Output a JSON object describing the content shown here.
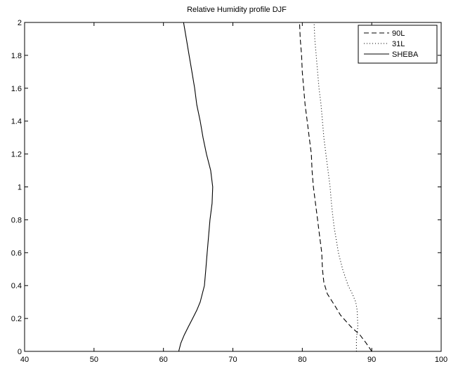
{
  "chart_data": {
    "type": "line",
    "title": "Relative Humidity profile DJF",
    "xlabel": "",
    "ylabel": "",
    "xlim": [
      40,
      100
    ],
    "ylim": [
      0,
      2
    ],
    "xticks": [
      40,
      50,
      60,
      70,
      80,
      90,
      100
    ],
    "yticks": [
      0,
      0.2,
      0.4,
      0.6,
      0.8,
      1,
      1.2,
      1.4,
      1.6,
      1.8,
      2
    ],
    "xtick_labels": [
      "40",
      "50",
      "60",
      "70",
      "80",
      "90",
      "100"
    ],
    "ytick_labels": [
      "0",
      "0.2",
      "0.4",
      "0.6",
      "0.8",
      "1",
      "1.2",
      "1.4",
      "1.6",
      "1.8",
      "2"
    ],
    "grid": false,
    "legend_position": "top-right",
    "series": [
      {
        "name": "90L",
        "style": "dashed",
        "color": "#000000",
        "points": [
          [
            90.0,
            0.0
          ],
          [
            89.2,
            0.05
          ],
          [
            88.3,
            0.1
          ],
          [
            87.0,
            0.15
          ],
          [
            85.5,
            0.22
          ],
          [
            84.8,
            0.27
          ],
          [
            83.6,
            0.35
          ],
          [
            83.1,
            0.42
          ],
          [
            82.9,
            0.5
          ],
          [
            82.8,
            0.6
          ],
          [
            82.5,
            0.7
          ],
          [
            82.2,
            0.8
          ],
          [
            81.9,
            0.9
          ],
          [
            81.6,
            1.0
          ],
          [
            81.4,
            1.1
          ],
          [
            81.3,
            1.2
          ],
          [
            81.0,
            1.3
          ],
          [
            80.7,
            1.4
          ],
          [
            80.4,
            1.5
          ],
          [
            80.2,
            1.6
          ],
          [
            80.0,
            1.7
          ],
          [
            79.9,
            1.8
          ],
          [
            79.7,
            1.9
          ],
          [
            79.6,
            2.0
          ]
        ]
      },
      {
        "name": "31L",
        "style": "dotted",
        "color": "#000000",
        "points": [
          [
            87.8,
            0.0
          ],
          [
            87.8,
            0.08
          ],
          [
            88.0,
            0.15
          ],
          [
            87.9,
            0.25
          ],
          [
            87.7,
            0.3
          ],
          [
            87.2,
            0.35
          ],
          [
            86.6,
            0.4
          ],
          [
            86.2,
            0.45
          ],
          [
            85.8,
            0.5
          ],
          [
            85.5,
            0.55
          ],
          [
            85.2,
            0.6
          ],
          [
            85.0,
            0.65
          ],
          [
            84.6,
            0.75
          ],
          [
            84.4,
            0.82
          ],
          [
            84.2,
            0.9
          ],
          [
            84.0,
            1.0
          ],
          [
            83.7,
            1.1
          ],
          [
            83.4,
            1.2
          ],
          [
            83.1,
            1.3
          ],
          [
            82.9,
            1.4
          ],
          [
            82.7,
            1.5
          ],
          [
            82.4,
            1.6
          ],
          [
            82.2,
            1.7
          ],
          [
            82.0,
            1.8
          ],
          [
            81.8,
            1.9
          ],
          [
            81.7,
            2.0
          ]
        ]
      },
      {
        "name": "SHEBA",
        "style": "solid",
        "color": "#000000",
        "points": [
          [
            62.2,
            0.0
          ],
          [
            62.5,
            0.05
          ],
          [
            63.0,
            0.1
          ],
          [
            63.6,
            0.15
          ],
          [
            64.2,
            0.2
          ],
          [
            64.8,
            0.25
          ],
          [
            65.3,
            0.3
          ],
          [
            65.6,
            0.35
          ],
          [
            65.9,
            0.4
          ],
          [
            66.1,
            0.5
          ],
          [
            66.3,
            0.6
          ],
          [
            66.5,
            0.7
          ],
          [
            66.7,
            0.8
          ],
          [
            67.0,
            0.9
          ],
          [
            67.1,
            1.0
          ],
          [
            66.8,
            1.1
          ],
          [
            66.2,
            1.2
          ],
          [
            65.7,
            1.3
          ],
          [
            65.3,
            1.4
          ],
          [
            64.8,
            1.5
          ],
          [
            64.5,
            1.6
          ],
          [
            64.1,
            1.7
          ],
          [
            63.7,
            1.8
          ],
          [
            63.3,
            1.9
          ],
          [
            62.9,
            2.0
          ]
        ]
      }
    ]
  }
}
